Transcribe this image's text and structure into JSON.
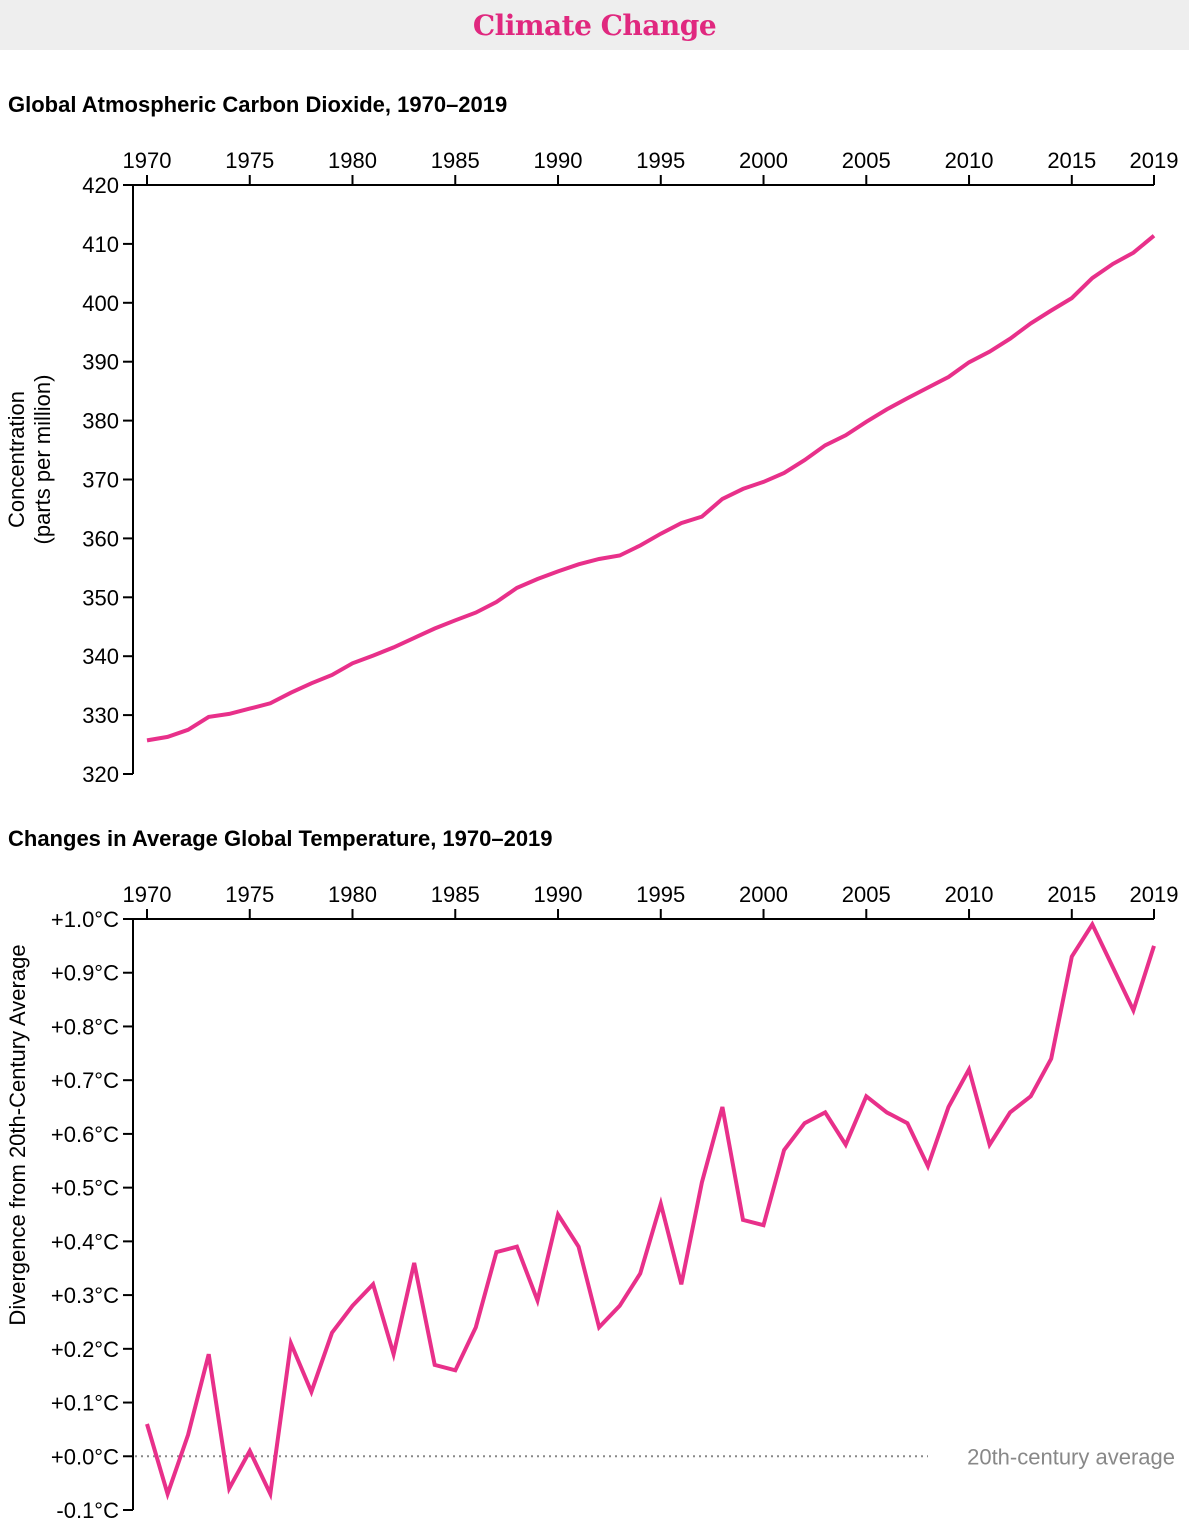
{
  "header": {
    "title": "Climate Change"
  },
  "colors": {
    "line": "#e8308a",
    "header_bg": "#eeeeee",
    "reference_line": "#888888"
  },
  "chart_data": [
    {
      "type": "line",
      "title": "Global Atmospheric Carbon Dioxide, 1970–2019",
      "ylabel_lines": [
        "Concentration",
        "(parts per million)"
      ],
      "xlabel": "",
      "x_axis_position": "top",
      "x_ticks": [
        1970,
        1975,
        1980,
        1985,
        1990,
        1995,
        2000,
        2005,
        2010,
        2015,
        2019
      ],
      "y_ticks": [
        320,
        330,
        340,
        350,
        360,
        370,
        380,
        390,
        400,
        410,
        420
      ],
      "xlim": [
        1970,
        2019
      ],
      "ylim": [
        320,
        420
      ],
      "grid": false,
      "x": [
        1970,
        1971,
        1972,
        1973,
        1974,
        1975,
        1976,
        1977,
        1978,
        1979,
        1980,
        1981,
        1982,
        1983,
        1984,
        1985,
        1986,
        1987,
        1988,
        1989,
        1990,
        1991,
        1992,
        1993,
        1994,
        1995,
        1996,
        1997,
        1998,
        1999,
        2000,
        2001,
        2002,
        2003,
        2004,
        2005,
        2006,
        2007,
        2008,
        2009,
        2010,
        2011,
        2012,
        2013,
        2014,
        2015,
        2016,
        2017,
        2018,
        2019
      ],
      "values": [
        325.7,
        326.3,
        327.5,
        329.7,
        330.2,
        331.1,
        332.0,
        333.8,
        335.4,
        336.8,
        338.8,
        340.1,
        341.5,
        343.1,
        344.7,
        346.1,
        347.4,
        349.2,
        351.6,
        353.1,
        354.4,
        355.6,
        356.5,
        357.1,
        358.8,
        360.8,
        362.6,
        363.7,
        366.7,
        368.4,
        369.6,
        371.1,
        373.3,
        375.8,
        377.5,
        379.8,
        381.9,
        383.8,
        385.6,
        387.4,
        389.9,
        391.7,
        393.9,
        396.5,
        398.7,
        400.8,
        404.2,
        406.6,
        408.5,
        411.4
      ]
    },
    {
      "type": "line",
      "title": "Changes in Average Global Temperature, 1970–2019",
      "ylabel": "Divergence from 20th-Century Average",
      "xlabel": "",
      "x_axis_position": "top",
      "x_ticks": [
        1970,
        1975,
        1980,
        1985,
        1990,
        1995,
        2000,
        2005,
        2010,
        2015,
        2019
      ],
      "y_ticks": [
        -0.1,
        0.0,
        0.1,
        0.2,
        0.3,
        0.4,
        0.5,
        0.6,
        0.7,
        0.8,
        0.9,
        1.0
      ],
      "y_tick_labels": [
        "-0.1°C",
        "+0.0°C",
        "+0.1°C",
        "+0.2°C",
        "+0.3°C",
        "+0.4°C",
        "+0.5°C",
        "+0.6°C",
        "+0.7°C",
        "+0.8°C",
        "+0.9°C",
        "+1.0°C"
      ],
      "xlim": [
        1970,
        2019
      ],
      "ylim": [
        -0.1,
        1.0
      ],
      "grid": false,
      "reference_line": {
        "value": 0.0,
        "label": "20th-century average",
        "style": "dotted"
      },
      "x": [
        1970,
        1971,
        1972,
        1973,
        1974,
        1975,
        1976,
        1977,
        1978,
        1979,
        1980,
        1981,
        1982,
        1983,
        1984,
        1985,
        1986,
        1987,
        1988,
        1989,
        1990,
        1991,
        1992,
        1993,
        1994,
        1995,
        1996,
        1997,
        1998,
        1999,
        2000,
        2001,
        2002,
        2003,
        2004,
        2005,
        2006,
        2007,
        2008,
        2009,
        2010,
        2011,
        2012,
        2013,
        2014,
        2015,
        2016,
        2017,
        2018,
        2019
      ],
      "values": [
        0.06,
        -0.07,
        0.04,
        0.19,
        -0.06,
        0.01,
        -0.07,
        0.21,
        0.12,
        0.23,
        0.28,
        0.32,
        0.19,
        0.36,
        0.17,
        0.16,
        0.24,
        0.38,
        0.39,
        0.29,
        0.45,
        0.39,
        0.24,
        0.28,
        0.34,
        0.47,
        0.32,
        0.51,
        0.65,
        0.44,
        0.43,
        0.57,
        0.62,
        0.64,
        0.58,
        0.67,
        0.64,
        0.62,
        0.54,
        0.65,
        0.72,
        0.58,
        0.64,
        0.67,
        0.74,
        0.93,
        0.99,
        0.91,
        0.83,
        0.95
      ]
    }
  ]
}
